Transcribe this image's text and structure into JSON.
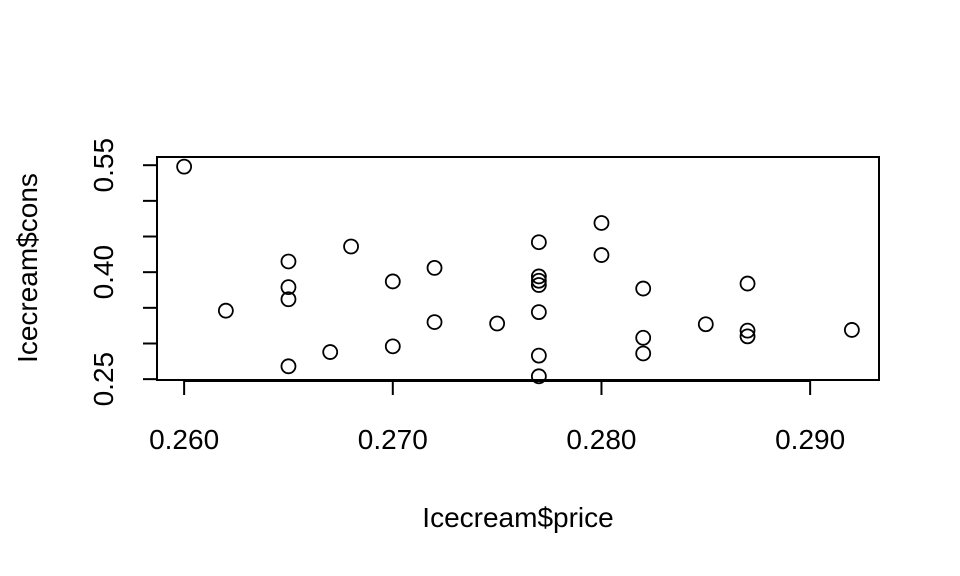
{
  "chart_data": {
    "type": "scatter",
    "title": "",
    "xlabel": "Icecream$price",
    "ylabel": "Icecream$cons",
    "xlim": [
      0.2587,
      0.2933
    ],
    "ylim": [
      0.2488,
      0.5615
    ],
    "x_ticks": [
      0.26,
      0.27,
      0.28,
      0.29
    ],
    "x_tick_labels": [
      "0.260",
      "0.270",
      "0.280",
      "0.290"
    ],
    "y_ticks": [
      0.25,
      0.3,
      0.35,
      0.4,
      0.45,
      0.5,
      0.55
    ],
    "y_tick_labels": [
      "0.25",
      "",
      "",
      "0.40",
      "",
      "",
      "0.55"
    ],
    "grid": false,
    "legend": false,
    "marker": "open-circle",
    "points": [
      {
        "x": 0.26,
        "y": 0.548
      },
      {
        "x": 0.262,
        "y": 0.346
      },
      {
        "x": 0.265,
        "y": 0.268
      },
      {
        "x": 0.265,
        "y": 0.362
      },
      {
        "x": 0.265,
        "y": 0.379
      },
      {
        "x": 0.265,
        "y": 0.415
      },
      {
        "x": 0.267,
        "y": 0.288
      },
      {
        "x": 0.268,
        "y": 0.436
      },
      {
        "x": 0.27,
        "y": 0.296
      },
      {
        "x": 0.27,
        "y": 0.387
      },
      {
        "x": 0.272,
        "y": 0.33
      },
      {
        "x": 0.272,
        "y": 0.406
      },
      {
        "x": 0.275,
        "y": 0.328
      },
      {
        "x": 0.277,
        "y": 0.254
      },
      {
        "x": 0.277,
        "y": 0.283
      },
      {
        "x": 0.277,
        "y": 0.344
      },
      {
        "x": 0.277,
        "y": 0.382
      },
      {
        "x": 0.277,
        "y": 0.388
      },
      {
        "x": 0.277,
        "y": 0.394
      },
      {
        "x": 0.277,
        "y": 0.442
      },
      {
        "x": 0.28,
        "y": 0.424
      },
      {
        "x": 0.28,
        "y": 0.469
      },
      {
        "x": 0.282,
        "y": 0.286
      },
      {
        "x": 0.282,
        "y": 0.308
      },
      {
        "x": 0.282,
        "y": 0.377
      },
      {
        "x": 0.285,
        "y": 0.327
      },
      {
        "x": 0.287,
        "y": 0.31
      },
      {
        "x": 0.287,
        "y": 0.318
      },
      {
        "x": 0.287,
        "y": 0.384
      },
      {
        "x": 0.292,
        "y": 0.319
      }
    ]
  }
}
